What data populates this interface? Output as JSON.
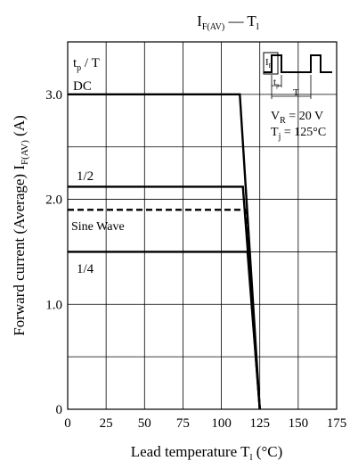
{
  "chart_data": {
    "type": "line",
    "title": {
      "main": "I",
      "sub": "F(AV)",
      "dash": " — ",
      "main2": "T",
      "sub2": "l"
    },
    "xlabel": {
      "main": "Lead temperature  T",
      "sub": "l",
      "unit": "  (°C)"
    },
    "ylabel": {
      "main": "Forward current (Average)  I",
      "sub": "F(AV)",
      "unit": "  (A)"
    },
    "xlim": [
      0,
      175
    ],
    "ylim": [
      0,
      3.5
    ],
    "x_ticks": [
      "0",
      "25",
      "50",
      "75",
      "100",
      "125",
      "150",
      "175"
    ],
    "y_ticks": [
      {
        "value": 0,
        "label": "0"
      },
      {
        "value": 1.0,
        "label": "1.0"
      },
      {
        "value": 2.0,
        "label": "2.0"
      },
      {
        "value": 3.0,
        "label": "3.0"
      }
    ],
    "grid": true,
    "series": [
      {
        "name": "DC",
        "style": "solid",
        "x": [
          0,
          112,
          125
        ],
        "y": [
          3.0,
          3.0,
          0
        ]
      },
      {
        "name": "1/2",
        "style": "solid",
        "x": [
          0,
          114,
          125
        ],
        "y": [
          2.12,
          2.12,
          0
        ]
      },
      {
        "name": "Sine Wave",
        "style": "dashed",
        "x": [
          0,
          116,
          125
        ],
        "y": [
          1.9,
          1.9,
          0
        ]
      },
      {
        "name": "1/4",
        "style": "solid",
        "x": [
          0,
          117,
          125
        ],
        "y": [
          1.5,
          1.5,
          0
        ]
      }
    ],
    "annotations": {
      "tp_T": {
        "main": "t",
        "sub": "p",
        "rest": " / T"
      },
      "inset": {
        "if_label": {
          "main": "I",
          "sub": "F"
        },
        "tp_label": {
          "main": "t",
          "sub": "p"
        },
        "t_label": "T",
        "vr": {
          "main": "V",
          "sub": "R",
          "rest": " = 20 V"
        },
        "tj": {
          "main": "T",
          "sub": "j",
          "rest": " = 125°C"
        }
      }
    }
  }
}
